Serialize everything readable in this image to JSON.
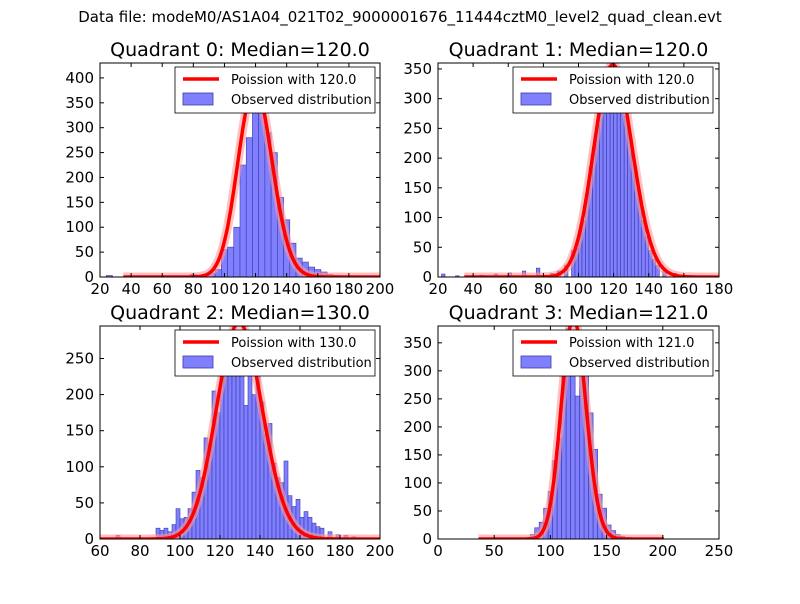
{
  "figure": {
    "suptitle": "Data file: modeM0/AS1A04_021T02_9000001676_11444cztM0_level2_quad_clean.evt"
  },
  "colors": {
    "bar_fill": "#8080ff",
    "bar_edge": "#3a3aa6",
    "poisson_line": "#ff0000",
    "poisson_glow": "#ff9a9a",
    "legend_bar": "#8080ff"
  },
  "chart_data": [
    {
      "type": "bar",
      "title": "Quadrant 0: Median=120.0",
      "median": 120.0,
      "xlim": [
        20,
        200
      ],
      "ylim": [
        0,
        430
      ],
      "xticks": [
        20,
        40,
        60,
        80,
        100,
        120,
        140,
        160,
        180,
        200
      ],
      "yticks": [
        0,
        50,
        100,
        150,
        200,
        250,
        300,
        350,
        400
      ],
      "legend": [
        "Poission with 120.0",
        "Observed distribution"
      ],
      "bins": [
        [
          24,
          3
        ],
        [
          78,
          5
        ],
        [
          86,
          3
        ],
        [
          90,
          8
        ],
        [
          94,
          15
        ],
        [
          98,
          55
        ],
        [
          102,
          60
        ],
        [
          106,
          100
        ],
        [
          110,
          225
        ],
        [
          114,
          280
        ],
        [
          118,
          365
        ],
        [
          122,
          360
        ],
        [
          126,
          290
        ],
        [
          130,
          250
        ],
        [
          134,
          160
        ],
        [
          138,
          115
        ],
        [
          142,
          68
        ],
        [
          146,
          38
        ],
        [
          150,
          30
        ],
        [
          154,
          20
        ],
        [
          158,
          15
        ],
        [
          162,
          10
        ],
        [
          166,
          5
        ],
        [
          170,
          3
        ]
      ]
    },
    {
      "type": "bar",
      "title": "Quadrant 1: Median=120.0",
      "median": 120.0,
      "xlim": [
        20,
        180
      ],
      "ylim": [
        0,
        360
      ],
      "xticks": [
        20,
        40,
        60,
        80,
        100,
        120,
        140,
        160,
        180
      ],
      "yticks": [
        0,
        50,
        100,
        150,
        200,
        250,
        300,
        350
      ],
      "legend": [
        "Poission with 120.0",
        "Observed distribution"
      ],
      "bins": [
        [
          22,
          5
        ],
        [
          30,
          2
        ],
        [
          44,
          3
        ],
        [
          52,
          5
        ],
        [
          60,
          7
        ],
        [
          68,
          10
        ],
        [
          76,
          15
        ],
        [
          84,
          6
        ],
        [
          88,
          10
        ],
        [
          92,
          20
        ],
        [
          96,
          45
        ],
        [
          98,
          48
        ],
        [
          100,
          80
        ],
        [
          102,
          95
        ],
        [
          104,
          140
        ],
        [
          106,
          185
        ],
        [
          108,
          220
        ],
        [
          110,
          255
        ],
        [
          112,
          295
        ],
        [
          114,
          315
        ],
        [
          116,
          330
        ],
        [
          118,
          335
        ],
        [
          120,
          340
        ],
        [
          122,
          320
        ],
        [
          124,
          300
        ],
        [
          126,
          270
        ],
        [
          128,
          240
        ],
        [
          130,
          205
        ],
        [
          132,
          170
        ],
        [
          134,
          130
        ],
        [
          136,
          95
        ],
        [
          138,
          68
        ],
        [
          140,
          45
        ],
        [
          142,
          30
        ],
        [
          144,
          20
        ],
        [
          148,
          10
        ],
        [
          154,
          6
        ],
        [
          160,
          3
        ]
      ]
    },
    {
      "type": "bar",
      "title": "Quadrant 2: Median=130.0",
      "median": 130.0,
      "xlim": [
        60,
        200
      ],
      "ylim": [
        0,
        295
      ],
      "xticks": [
        60,
        80,
        100,
        120,
        140,
        160,
        180,
        200
      ],
      "yticks": [
        0,
        50,
        100,
        150,
        200,
        250
      ],
      "legend": [
        "Poission with 130.0",
        "Observed distribution"
      ],
      "bins": [
        [
          68,
          5
        ],
        [
          88,
          15
        ],
        [
          90,
          12
        ],
        [
          92,
          15
        ],
        [
          94,
          10
        ],
        [
          96,
          20
        ],
        [
          98,
          42
        ],
        [
          100,
          28
        ],
        [
          102,
          30
        ],
        [
          104,
          42
        ],
        [
          106,
          65
        ],
        [
          108,
          95
        ],
        [
          110,
          85
        ],
        [
          112,
          140
        ],
        [
          114,
          130
        ],
        [
          116,
          205
        ],
        [
          118,
          175
        ],
        [
          120,
          240
        ],
        [
          122,
          265
        ],
        [
          124,
          240
        ],
        [
          126,
          280
        ],
        [
          128,
          270
        ],
        [
          130,
          285
        ],
        [
          132,
          185
        ],
        [
          134,
          228
        ],
        [
          136,
          200
        ],
        [
          138,
          280
        ],
        [
          140,
          190
        ],
        [
          142,
          145
        ],
        [
          144,
          160
        ],
        [
          146,
          105
        ],
        [
          148,
          85
        ],
        [
          150,
          78
        ],
        [
          152,
          108
        ],
        [
          154,
          60
        ],
        [
          156,
          45
        ],
        [
          158,
          55
        ],
        [
          160,
          30
        ],
        [
          162,
          38
        ],
        [
          164,
          30
        ],
        [
          166,
          22
        ],
        [
          168,
          17
        ],
        [
          170,
          15
        ],
        [
          174,
          10
        ],
        [
          178,
          6
        ],
        [
          182,
          5
        ],
        [
          186,
          3
        ]
      ]
    },
    {
      "type": "bar",
      "title": "Quadrant 3: Median=121.0",
      "median": 121.0,
      "xlim": [
        0,
        250
      ],
      "ylim": [
        0,
        380
      ],
      "xticks": [
        0,
        50,
        100,
        150,
        200,
        250
      ],
      "yticks": [
        0,
        50,
        100,
        150,
        200,
        250,
        300,
        350
      ],
      "legend": [
        "Poission with 121.0",
        "Observed distribution"
      ],
      "bins": [
        [
          82,
          8
        ],
        [
          86,
          20
        ],
        [
          90,
          30
        ],
        [
          94,
          55
        ],
        [
          98,
          85
        ],
        [
          102,
          140
        ],
        [
          106,
          180
        ],
        [
          110,
          300
        ],
        [
          114,
          375
        ],
        [
          118,
          300
        ],
        [
          122,
          255
        ],
        [
          126,
          305
        ],
        [
          130,
          305
        ],
        [
          134,
          225
        ],
        [
          138,
          160
        ],
        [
          142,
          80
        ],
        [
          146,
          55
        ],
        [
          150,
          25
        ],
        [
          154,
          15
        ],
        [
          158,
          8
        ],
        [
          162,
          5
        ],
        [
          168,
          3
        ]
      ]
    }
  ]
}
